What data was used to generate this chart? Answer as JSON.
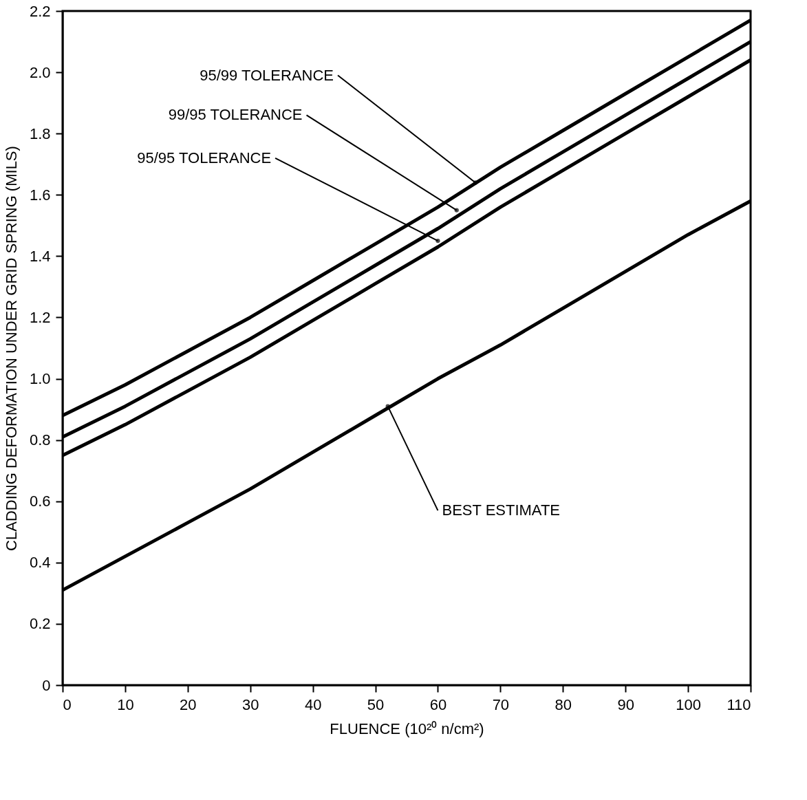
{
  "chart_data": {
    "type": "line",
    "xlabel": "FLUENCE (10²⁰ n/cm²)",
    "ylabel": "CLADDING DEFORMATION UNDER GRID SPRING (MILS)",
    "x": [
      0,
      10,
      20,
      30,
      40,
      50,
      60,
      70,
      80,
      90,
      100,
      110
    ],
    "series": [
      {
        "color": "#000000",
        "values": [
          0.88,
          0.98,
          1.09,
          1.2,
          1.32,
          1.44,
          1.56,
          1.69,
          1.81,
          1.93,
          2.05,
          2.17
        ]
      },
      {
        "color": "#000000",
        "values": [
          0.81,
          0.91,
          1.02,
          1.13,
          1.25,
          1.37,
          1.49,
          1.62,
          1.74,
          1.86,
          1.98,
          2.1
        ]
      },
      {
        "color": "#000000",
        "values": [
          0.75,
          0.85,
          0.96,
          1.07,
          1.19,
          1.31,
          1.43,
          1.56,
          1.68,
          1.8,
          1.92,
          2.04
        ]
      },
      {
        "color": "#000000",
        "values": [
          0.31,
          0.42,
          0.53,
          0.64,
          0.76,
          0.88,
          1.0,
          1.11,
          1.23,
          1.35,
          1.47,
          1.58
        ]
      }
    ],
    "xlim": [
      0,
      110
    ],
    "xticks": [
      0,
      10,
      20,
      30,
      40,
      50,
      60,
      70,
      80,
      90,
      100,
      110
    ],
    "ylim": [
      0,
      2.2
    ],
    "yticks": [
      0,
      0.2,
      0.4,
      0.6,
      0.8,
      {
        "value": 1,
        "label": "1.0"
      },
      1.2,
      1.4,
      1.6,
      1.8,
      {
        "value": 2,
        "label": "2.0"
      },
      2.2
    ],
    "grid": false,
    "marker": "none",
    "line_style": "solid",
    "annotations": [
      {
        "text": "95/99 TOLERANCE",
        "x": 66,
        "y": 1.64
      },
      {
        "text": "99/95 TOLERANCE",
        "x": 63,
        "y": 1.55
      },
      {
        "text": "95/95 TOLERANCE",
        "x": 60,
        "y": 1.45
      },
      {
        "text": "BEST ESTIMATE",
        "x": 52,
        "y": 0.91
      }
    ]
  }
}
